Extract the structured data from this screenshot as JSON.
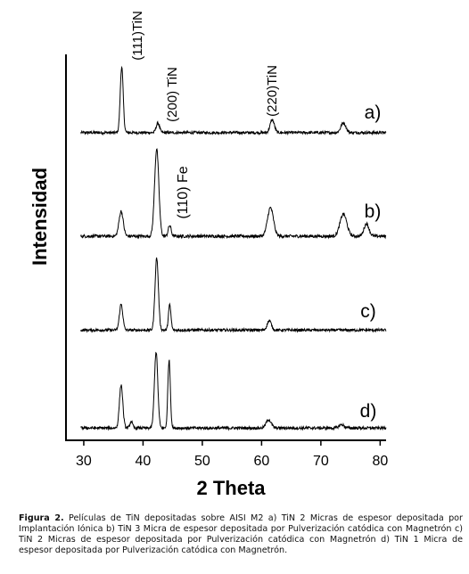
{
  "chart_data": {
    "type": "line",
    "xlabel": "2 Theta",
    "ylabel": "Intensidad",
    "xlim": [
      27,
      81
    ],
    "xticks": [
      30,
      40,
      50,
      60,
      70,
      80
    ],
    "yticks_shown": false,
    "grid": false,
    "series": [
      {
        "name": "a)",
        "baseline": 0.08,
        "peaks": [
          [
            36.4,
            0.82,
            0.35
          ],
          [
            42.5,
            0.12,
            0.4
          ],
          [
            61.8,
            0.16,
            0.5
          ],
          [
            73.8,
            0.12,
            0.6
          ]
        ]
      },
      {
        "name": "b)",
        "baseline": 0.05,
        "peaks": [
          [
            36.3,
            0.28,
            0.5
          ],
          [
            42.3,
            0.98,
            0.5
          ],
          [
            44.5,
            0.12,
            0.35
          ],
          [
            61.5,
            0.32,
            0.7
          ],
          [
            73.8,
            0.25,
            0.8
          ],
          [
            77.7,
            0.14,
            0.6
          ]
        ]
      },
      {
        "name": "c)",
        "baseline": 0.03,
        "peaks": [
          [
            36.3,
            0.33,
            0.4
          ],
          [
            42.3,
            0.92,
            0.4
          ],
          [
            44.5,
            0.32,
            0.3
          ],
          [
            61.3,
            0.12,
            0.5
          ]
        ]
      },
      {
        "name": "d)",
        "baseline": 0.03,
        "peaks": [
          [
            36.3,
            0.52,
            0.4
          ],
          [
            38.0,
            0.08,
            0.3
          ],
          [
            42.2,
            0.92,
            0.4
          ],
          [
            44.4,
            0.82,
            0.3
          ],
          [
            61.2,
            0.1,
            0.6
          ],
          [
            73.5,
            0.04,
            0.6
          ]
        ]
      }
    ],
    "annotations": [
      "(111)TiN",
      "(200) TiN",
      "(220)TiN",
      "(110) Fe"
    ]
  },
  "caption": {
    "label": "Figura 2.",
    "text": "Películas de TiN depositadas sobre AISI M2 a) TiN 2 Micras de espesor depositada por Implantación Iónica b) TiN 3 Micra de espesor depositada por Pulverización catódica con Magnetrón c) TiN 2 Micras de espesor depositada por Pulverización catódica con Magnetrón d) TiN 1 Micra de espesor depositada por Pulverización catódica con Magnetrón."
  }
}
